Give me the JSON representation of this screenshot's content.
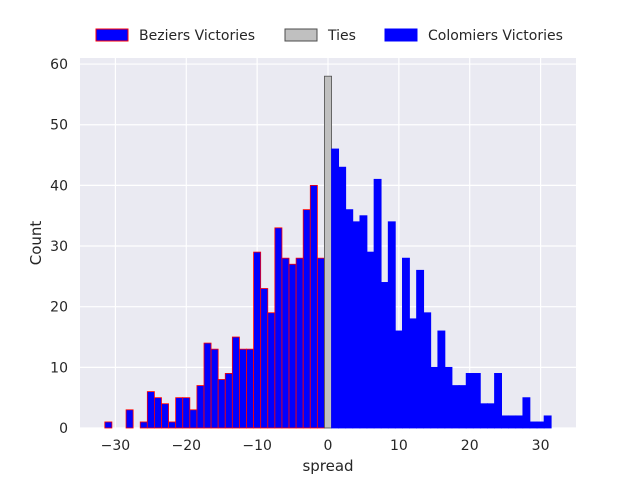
{
  "chart_data": {
    "type": "bar",
    "title": "",
    "xlabel": "spread",
    "ylabel": "Count",
    "xlim": [
      -35,
      35
    ],
    "ylim": [
      0,
      61
    ],
    "x_ticks": [
      -30,
      -20,
      -10,
      0,
      10,
      20,
      30
    ],
    "x_tick_labels": [
      "−30",
      "−20",
      "−10",
      "0",
      "10",
      "20",
      "30"
    ],
    "y_ticks": [
      0,
      10,
      20,
      30,
      40,
      50,
      60
    ],
    "y_tick_labels": [
      "0",
      "10",
      "20",
      "30",
      "40",
      "50",
      "60"
    ],
    "grid": true,
    "legend_position": "top",
    "series": [
      {
        "name": "Beziers Victories",
        "fill": "#0000ff",
        "edge": "#ff0000",
        "points": [
          {
            "x": -31,
            "y": 1
          },
          {
            "x": -28,
            "y": 3
          },
          {
            "x": -26,
            "y": 1
          },
          {
            "x": -25,
            "y": 6
          },
          {
            "x": -24,
            "y": 5
          },
          {
            "x": -23,
            "y": 4
          },
          {
            "x": -22,
            "y": 1
          },
          {
            "x": -21,
            "y": 5
          },
          {
            "x": -20,
            "y": 5
          },
          {
            "x": -19,
            "y": 3
          },
          {
            "x": -18,
            "y": 7
          },
          {
            "x": -17,
            "y": 14
          },
          {
            "x": -16,
            "y": 13
          },
          {
            "x": -15,
            "y": 8
          },
          {
            "x": -14,
            "y": 9
          },
          {
            "x": -13,
            "y": 15
          },
          {
            "x": -12,
            "y": 13
          },
          {
            "x": -11,
            "y": 13
          },
          {
            "x": -10,
            "y": 29
          },
          {
            "x": -9,
            "y": 23
          },
          {
            "x": -8,
            "y": 19
          },
          {
            "x": -7,
            "y": 33
          },
          {
            "x": -6,
            "y": 28
          },
          {
            "x": -5,
            "y": 27
          },
          {
            "x": -4,
            "y": 28
          },
          {
            "x": -3,
            "y": 36
          },
          {
            "x": -2,
            "y": 40
          },
          {
            "x": -1,
            "y": 28
          }
        ]
      },
      {
        "name": "Ties",
        "fill": "#c0c0c0",
        "edge": "#4d4d4d",
        "points": [
          {
            "x": 0,
            "y": 58
          }
        ]
      },
      {
        "name": "Colomiers Victories",
        "fill": "#0000ff",
        "edge": "#0000ff",
        "points": [
          {
            "x": 1,
            "y": 46
          },
          {
            "x": 2,
            "y": 43
          },
          {
            "x": 3,
            "y": 36
          },
          {
            "x": 4,
            "y": 34
          },
          {
            "x": 5,
            "y": 35
          },
          {
            "x": 6,
            "y": 29
          },
          {
            "x": 7,
            "y": 41
          },
          {
            "x": 8,
            "y": 24
          },
          {
            "x": 9,
            "y": 34
          },
          {
            "x": 10,
            "y": 16
          },
          {
            "x": 11,
            "y": 28
          },
          {
            "x": 12,
            "y": 18
          },
          {
            "x": 13,
            "y": 26
          },
          {
            "x": 14,
            "y": 19
          },
          {
            "x": 15,
            "y": 10
          },
          {
            "x": 16,
            "y": 16
          },
          {
            "x": 17,
            "y": 10
          },
          {
            "x": 18,
            "y": 7
          },
          {
            "x": 19,
            "y": 7
          },
          {
            "x": 20,
            "y": 9
          },
          {
            "x": 21,
            "y": 9
          },
          {
            "x": 22,
            "y": 4
          },
          {
            "x": 23,
            "y": 4
          },
          {
            "x": 24,
            "y": 9
          },
          {
            "x": 25,
            "y": 2
          },
          {
            "x": 26,
            "y": 2
          },
          {
            "x": 27,
            "y": 2
          },
          {
            "x": 28,
            "y": 5
          },
          {
            "x": 29,
            "y": 1
          },
          {
            "x": 30,
            "y": 1
          },
          {
            "x": 31,
            "y": 2
          }
        ]
      }
    ]
  },
  "colors": {
    "plot_background": "#eaeaf2",
    "grid": "#ffffff",
    "text": "#262626"
  }
}
